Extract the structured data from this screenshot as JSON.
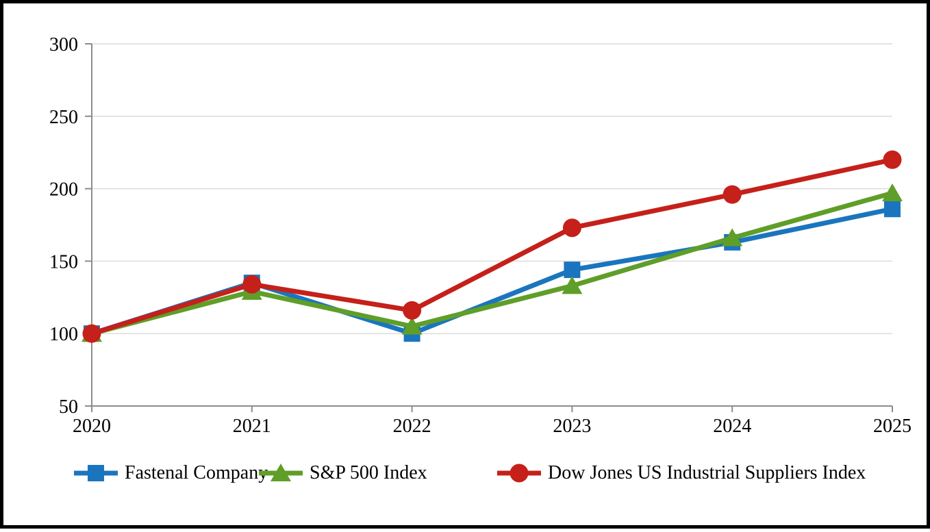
{
  "chart_data": {
    "type": "line",
    "title": "",
    "xlabel": "",
    "ylabel": "",
    "x_categories": [
      "2020",
      "2021",
      "2022",
      "2023",
      "2024",
      "2025"
    ],
    "y_ticks": [
      50,
      100,
      150,
      200,
      250,
      300
    ],
    "ylim": [
      50,
      300
    ],
    "grid": true,
    "legend_position": "bottom",
    "series": [
      {
        "name": "Fastenal Company",
        "marker": "square",
        "color": "#1B75BE",
        "values": [
          100,
          135,
          100,
          144,
          163,
          186
        ]
      },
      {
        "name": "S&P 500 Index",
        "marker": "triangle",
        "color": "#5F9E28",
        "values": [
          100,
          129,
          105,
          133,
          166,
          197
        ]
      },
      {
        "name": "Dow Jones US Industrial Suppliers Index",
        "marker": "circle",
        "color": "#C5201A",
        "values": [
          100,
          134,
          116,
          173,
          196,
          220
        ]
      }
    ],
    "axis_color": "#8C8C8C",
    "gridline_color": "#DCDCDC",
    "text_color": "#000000"
  }
}
